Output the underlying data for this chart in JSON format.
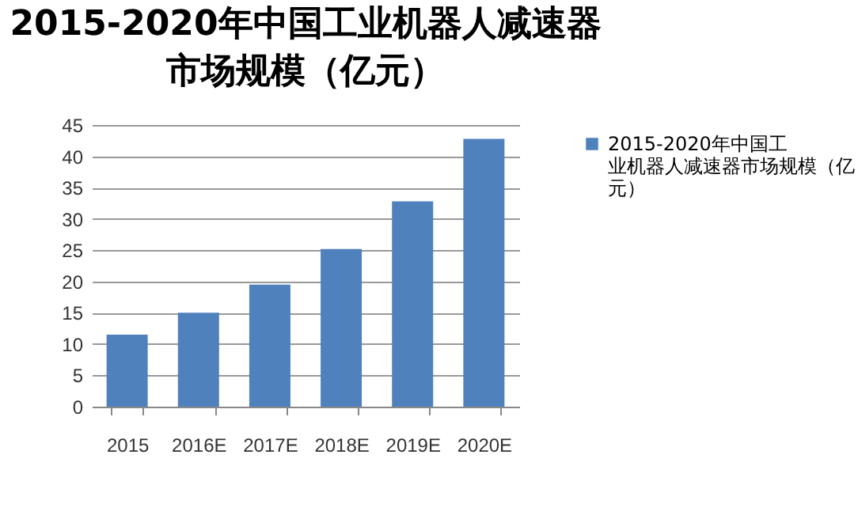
{
  "chart_data": {
    "type": "bar",
    "title": "2015-2020年中国工业机器人减速器市场规模（亿元）",
    "categories": [
      "2015",
      "2016E",
      "2017E",
      "2018E",
      "2019E",
      "2020E"
    ],
    "series": [
      {
        "name": "2015-2020年中国工业机器人减速器市场规模（亿元）",
        "color": "#4f81bd",
        "values": [
          11.5,
          15,
          19.5,
          25.2,
          32.8,
          42.8
        ]
      }
    ],
    "ylim": [
      0,
      45
    ],
    "yticks": [
      0,
      5,
      10,
      15,
      20,
      25,
      30,
      35,
      40,
      45
    ],
    "grid": "y",
    "legend": "right"
  }
}
